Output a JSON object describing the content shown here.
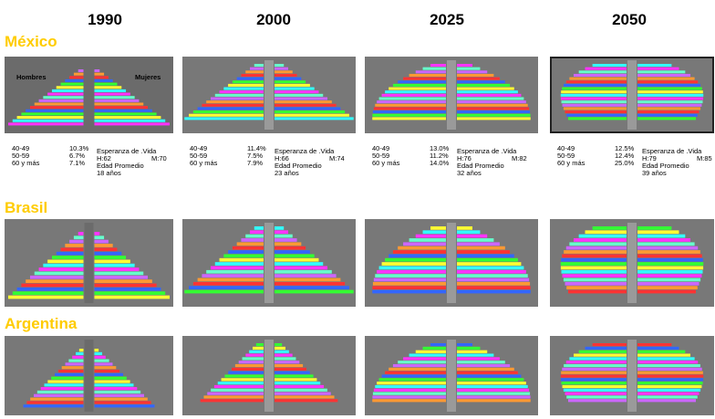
{
  "years": [
    "1990",
    "2000",
    "2025",
    "2050"
  ],
  "countries": [
    "México",
    "Brasil",
    "Argentina"
  ],
  "pyramid_labels": {
    "left": "Hombres",
    "right": "Mujeres"
  },
  "stats": [
    {
      "ages": [
        {
          "range": "40-49",
          "share": "10.3%"
        },
        {
          "range": "50-59",
          "share": "6.7%"
        },
        {
          "range": "60 y más",
          "share": "7.1%"
        }
      ],
      "life_label": "Esperanza de .Vida",
      "men": "H:62",
      "women": "M:70",
      "age_label": "Edad Promedio",
      "age": "18 años"
    },
    {
      "ages": [
        {
          "range": "40-49",
          "share": "11.4%"
        },
        {
          "range": "50-59",
          "share": "7.5%"
        },
        {
          "range": "60 y más",
          "share": "7.9%"
        }
      ],
      "life_label": "Esperanza de .Vida",
      "men": "H:66",
      "women": "M:74",
      "age_label": "Edad Promedio",
      "age": "23 años"
    },
    {
      "ages": [
        {
          "range": "40-49",
          "share": "13.0%"
        },
        {
          "range": "50-59",
          "share": "11.2%"
        },
        {
          "range": "60 y más",
          "share": "14.0%"
        }
      ],
      "life_label": "Esperanza de .Vida",
      "men": "H:76",
      "women": "M:82",
      "age_label": "Edad Promedio",
      "age": "32 años"
    },
    {
      "ages": [
        {
          "range": "40-49",
          "share": "12.5%"
        },
        {
          "range": "50-59",
          "share": "12.4%"
        },
        {
          "range": "60 y más",
          "share": "25.0%"
        }
      ],
      "life_label": "Esperanza de .Vida",
      "men": "H:79",
      "women": "M:85",
      "age_label": "Edad Promedio",
      "age": "39 años"
    }
  ]
}
